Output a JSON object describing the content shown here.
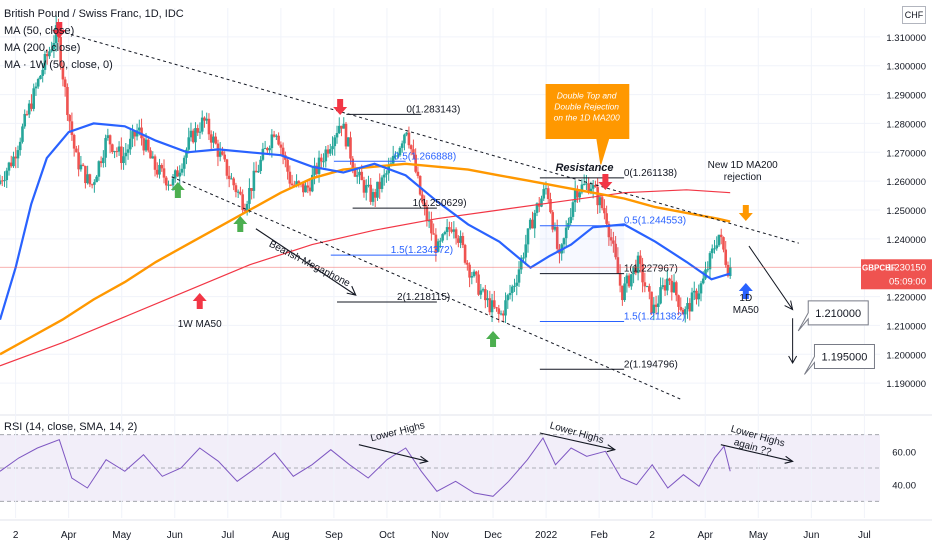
{
  "chart_data": {
    "type": "candlestick",
    "title": "British Pound / Swiss Franc, 1D, IDC",
    "currency": "CHF",
    "legend": [
      "MA (50, close)",
      "MA (200, close)",
      "MA · 1W (50, close, 0)"
    ],
    "price_axis": {
      "ticks": [
        "1.310000",
        "1.300000",
        "1.290000",
        "1.280000",
        "1.270000",
        "1.260000",
        "1.250000",
        "1.240000",
        "1.220000",
        "1.210000",
        "1.200000",
        "1.190000"
      ],
      "ylim": [
        1.18,
        1.32
      ]
    },
    "time_axis": {
      "ticks": [
        "2",
        "Apr",
        "May",
        "Jun",
        "Jul",
        "Aug",
        "Sep",
        "Oct",
        "Nov",
        "Dec",
        "2022",
        "Feb",
        "2",
        "Apr",
        "May",
        "Jun",
        "Jul"
      ],
      "positions": [
        0.5,
        2.2,
        3.9,
        5.6,
        7.3,
        9.0,
        10.7,
        12.4,
        14.1,
        15.8,
        17.5,
        19.2,
        20.9,
        22.6,
        24.3,
        26.0,
        27.7
      ],
      "xlim": [
        0,
        28.2
      ]
    },
    "last_price": {
      "symbol": "GBPCHF",
      "value": "1.230150",
      "countdown": "05:09:00"
    },
    "rsi": {
      "label": "RSI (14, close, SMA, 14, 2)",
      "ticks": [
        "60.00",
        "40.00"
      ],
      "band": [
        30,
        70
      ]
    },
    "series": {
      "price": [
        [
          0,
          1.259
        ],
        [
          0.5,
          1.268
        ],
        [
          1,
          1.285
        ],
        [
          1.5,
          1.301
        ],
        [
          1.9,
          1.312
        ],
        [
          2.2,
          1.288
        ],
        [
          2.5,
          1.268
        ],
        [
          3,
          1.258
        ],
        [
          3.5,
          1.275
        ],
        [
          4,
          1.268
        ],
        [
          4.5,
          1.278
        ],
        [
          5,
          1.265
        ],
        [
          5.6,
          1.259
        ],
        [
          6.2,
          1.275
        ],
        [
          6.6,
          1.281
        ],
        [
          7,
          1.272
        ],
        [
          7.4,
          1.262
        ],
        [
          7.9,
          1.252
        ],
        [
          8.4,
          1.266
        ],
        [
          8.9,
          1.279
        ],
        [
          9.4,
          1.259
        ],
        [
          9.9,
          1.257
        ],
        [
          10.4,
          1.268
        ],
        [
          11,
          1.281
        ],
        [
          11.5,
          1.262
        ],
        [
          12,
          1.254
        ],
        [
          12.6,
          1.265
        ],
        [
          13.1,
          1.279
        ],
        [
          13.6,
          1.252
        ],
        [
          14.1,
          1.236
        ],
        [
          14.6,
          1.246
        ],
        [
          15.1,
          1.23
        ],
        [
          15.6,
          1.219
        ],
        [
          16.1,
          1.213
        ],
        [
          16.6,
          1.226
        ],
        [
          17.2,
          1.249
        ],
        [
          17.6,
          1.258
        ],
        [
          18,
          1.232
        ],
        [
          18.5,
          1.257
        ],
        [
          19,
          1.259
        ],
        [
          19.5,
          1.248
        ],
        [
          20,
          1.221
        ],
        [
          20.5,
          1.232
        ],
        [
          21,
          1.215
        ],
        [
          21.5,
          1.227
        ],
        [
          22,
          1.214
        ],
        [
          22.6,
          1.225
        ],
        [
          23.1,
          1.242
        ],
        [
          23.4,
          1.23
        ]
      ],
      "ma50": [
        [
          0,
          1.212
        ],
        [
          0.5,
          1.23
        ],
        [
          1,
          1.252
        ],
        [
          1.5,
          1.268
        ],
        [
          2.2,
          1.277
        ],
        [
          3,
          1.28
        ],
        [
          4,
          1.279
        ],
        [
          5,
          1.274
        ],
        [
          6,
          1.27
        ],
        [
          7,
          1.271
        ],
        [
          8,
          1.27
        ],
        [
          9,
          1.269
        ],
        [
          10,
          1.265
        ],
        [
          11,
          1.263
        ],
        [
          12,
          1.266
        ],
        [
          13,
          1.262
        ],
        [
          14,
          1.253
        ],
        [
          15,
          1.245
        ],
        [
          16,
          1.239
        ],
        [
          17,
          1.23
        ],
        [
          17.6,
          1.234
        ],
        [
          18.3,
          1.238
        ],
        [
          19,
          1.244
        ],
        [
          20,
          1.245
        ],
        [
          21,
          1.239
        ],
        [
          22,
          1.232
        ],
        [
          22.8,
          1.226
        ],
        [
          23.4,
          1.228
        ]
      ],
      "ma200": [
        [
          0,
          1.2
        ],
        [
          1,
          1.206
        ],
        [
          2,
          1.212
        ],
        [
          3,
          1.219
        ],
        [
          4,
          1.225
        ],
        [
          5,
          1.232
        ],
        [
          6,
          1.238
        ],
        [
          7,
          1.244
        ],
        [
          8,
          1.25
        ],
        [
          9,
          1.256
        ],
        [
          10,
          1.261
        ],
        [
          11,
          1.264
        ],
        [
          12,
          1.265
        ],
        [
          13,
          1.266
        ],
        [
          14,
          1.265
        ],
        [
          15,
          1.264
        ],
        [
          16,
          1.262
        ],
        [
          17,
          1.26
        ],
        [
          18,
          1.258
        ],
        [
          19,
          1.256
        ],
        [
          20,
          1.254
        ],
        [
          21,
          1.251
        ],
        [
          22,
          1.249
        ],
        [
          23,
          1.247
        ],
        [
          23.4,
          1.246
        ]
      ],
      "ma1w": [
        [
          0,
          1.196
        ],
        [
          2,
          1.204
        ],
        [
          4,
          1.213
        ],
        [
          6,
          1.222
        ],
        [
          8,
          1.231
        ],
        [
          10,
          1.238
        ],
        [
          12,
          1.243
        ],
        [
          14,
          1.247
        ],
        [
          16,
          1.25
        ],
        [
          18,
          1.253
        ],
        [
          20,
          1.256
        ],
        [
          22,
          1.257
        ],
        [
          23.4,
          1.256
        ]
      ],
      "rsi": [
        [
          0,
          48
        ],
        [
          0.6,
          56
        ],
        [
          1.2,
          62
        ],
        [
          1.9,
          67
        ],
        [
          2.3,
          44
        ],
        [
          2.8,
          38
        ],
        [
          3.4,
          55
        ],
        [
          4,
          48
        ],
        [
          4.6,
          58
        ],
        [
          5.2,
          45
        ],
        [
          5.8,
          50
        ],
        [
          6.4,
          62
        ],
        [
          7,
          54
        ],
        [
          7.6,
          42
        ],
        [
          8.2,
          50
        ],
        [
          8.8,
          59
        ],
        [
          9.4,
          45
        ],
        [
          10,
          52
        ],
        [
          10.6,
          61
        ],
        [
          11.2,
          52
        ],
        [
          11.8,
          44
        ],
        [
          12.4,
          55
        ],
        [
          13,
          62
        ],
        [
          13.5,
          48
        ],
        [
          14,
          36
        ],
        [
          14.6,
          42
        ],
        [
          15.2,
          35
        ],
        [
          15.8,
          33
        ],
        [
          16.3,
          42
        ],
        [
          16.9,
          55
        ],
        [
          17.4,
          68
        ],
        [
          17.8,
          52
        ],
        [
          18.3,
          62
        ],
        [
          18.8,
          57
        ],
        [
          19.4,
          60
        ],
        [
          19.9,
          44
        ],
        [
          20.4,
          40
        ],
        [
          20.9,
          52
        ],
        [
          21.4,
          38
        ],
        [
          21.9,
          46
        ],
        [
          22.4,
          39
        ],
        [
          22.9,
          56
        ],
        [
          23.2,
          63
        ],
        [
          23.4,
          48
        ]
      ]
    },
    "trendlines": [
      {
        "name": "upper-trendline",
        "from": [
          1.9,
          1.312
        ],
        "to": [
          25.6,
          1.2385
        ]
      },
      {
        "name": "lower-trendline",
        "from": [
          5.5,
          1.2615
        ],
        "to": [
          21.8,
          1.1845
        ]
      },
      {
        "name": "rsi-lower-highs-1",
        "from": [
          11.5,
          64
        ],
        "to": [
          13.7,
          54
        ]
      },
      {
        "name": "rsi-lower-highs-2",
        "from": [
          17.3,
          71
        ],
        "to": [
          19.7,
          61
        ]
      },
      {
        "name": "rsi-lower-highs-3",
        "from": [
          23.1,
          64
        ],
        "to": [
          25.4,
          54
        ]
      }
    ],
    "fib_levels": [
      {
        "label": "0(1.283143)",
        "x": [
          11.1,
          13.5
        ],
        "y": 1.283143
      },
      {
        "label": "0.5(1.266888)",
        "x": [
          10.7,
          13.0
        ],
        "y": 1.266888
      },
      {
        "label": "1(1.250629)",
        "x": [
          11.3,
          14.0
        ],
        "y": 1.250629
      },
      {
        "label": "1.5(1.234372)",
        "x": [
          10.6,
          14.0
        ],
        "y": 1.234372
      },
      {
        "label": "2(1.218115)",
        "x": [
          10.8,
          14.0
        ],
        "y": 1.218115
      },
      {
        "label": "0(1.261138)",
        "x": [
          17.3,
          20.0
        ],
        "y": 1.261138
      },
      {
        "label": "0.5(1.244553)",
        "x": [
          17.3,
          20.0
        ],
        "y": 1.244553
      },
      {
        "label": "1(1.227967)",
        "x": [
          17.3,
          20.0
        ],
        "y": 1.227967
      },
      {
        "label": "1.5(1.211382)",
        "x": [
          17.3,
          20.0
        ],
        "y": 1.211382
      },
      {
        "label": "2(1.194796)",
        "x": [
          17.3,
          20.0
        ],
        "y": 1.194796
      }
    ],
    "annotations": {
      "resistance": "Resistance",
      "callout": [
        "Double Top and",
        "Double Rejection",
        "on the 1D MA200"
      ],
      "new_ma200": [
        "New 1D MA200",
        "rejection"
      ],
      "bearish_megaphone": "Bearish Megaphone",
      "ma1w_label": "1W MA50",
      "ma50_label": [
        "1D",
        "MA50"
      ],
      "targets": [
        "1.210000",
        "1.195000"
      ],
      "rsi_lower_highs_1": "Lower Highs",
      "rsi_lower_highs_2": "Lower Highs",
      "rsi_lower_highs_3": [
        "Lower Highs",
        "again ??"
      ]
    },
    "arrows_down": [
      1.9,
      10.9,
      19.4
    ],
    "arrows_up": [
      5.7,
      7.7,
      15.8
    ],
    "arrow_up_red": 6.4,
    "colors": {
      "up": "#26a69a",
      "down": "#ef5350",
      "ma50": "#2962ff",
      "ma200": "#ff9800",
      "ma1w": "#f23645",
      "rsi": "#7e57c2",
      "arrow_green": "#4caf50",
      "arrow_red": "#f23645",
      "callout_bg": "#ff9800",
      "grid": "#f0f3fa",
      "axis_text": "#131722"
    }
  }
}
